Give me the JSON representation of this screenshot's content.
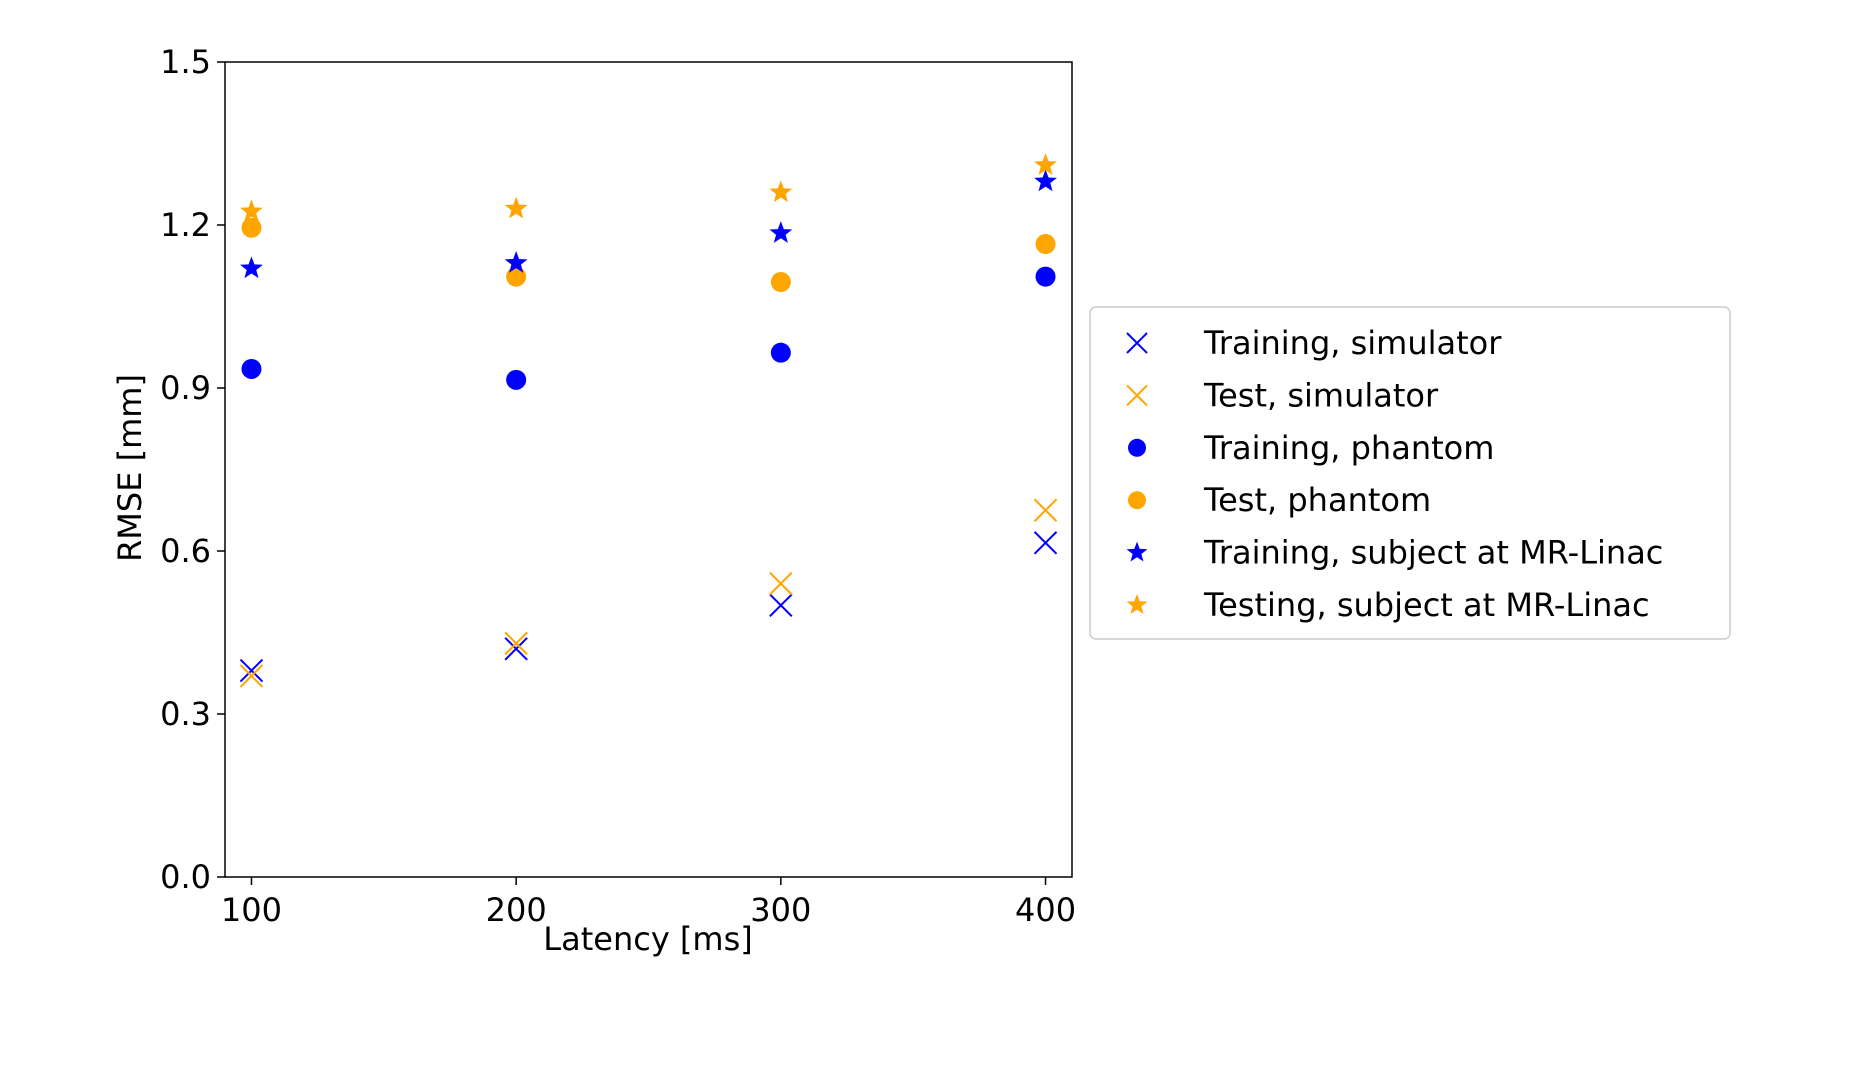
{
  "chart_data": {
    "type": "scatter",
    "title": "",
    "xlabel": "Latency [ms]",
    "ylabel": "RMSE [mm]",
    "xlim": [
      90,
      410
    ],
    "ylim": [
      0.0,
      1.5
    ],
    "xticks": [
      100,
      200,
      300,
      400
    ],
    "yticks": [
      0.0,
      0.3,
      0.6,
      0.9,
      1.2,
      1.5
    ],
    "xtick_labels": [
      "100",
      "200",
      "300",
      "400"
    ],
    "ytick_labels": [
      "0.0",
      "0.3",
      "0.6",
      "0.9",
      "1.2",
      "1.5"
    ],
    "grid": false,
    "legend_placement": "right, outside plot area",
    "colors": {
      "blue": "#0000ff",
      "orange": "#ffa500"
    },
    "series": [
      {
        "name": "Training, simulator",
        "marker": "x",
        "color": "#0000ff",
        "x": [
          100,
          200,
          300,
          400
        ],
        "y": [
          0.38,
          0.42,
          0.5,
          0.615
        ]
      },
      {
        "name": "Test, simulator",
        "marker": "x",
        "color": "#ffa500",
        "x": [
          100,
          200,
          300,
          400
        ],
        "y": [
          0.37,
          0.43,
          0.54,
          0.675
        ]
      },
      {
        "name": "Training, phantom",
        "marker": "circle",
        "color": "#0000ff",
        "x": [
          100,
          200,
          300,
          400
        ],
        "y": [
          0.935,
          0.915,
          0.965,
          1.105
        ]
      },
      {
        "name": "Test, phantom",
        "marker": "circle",
        "color": "#ffa500",
        "x": [
          100,
          200,
          300,
          400
        ],
        "y": [
          1.195,
          1.105,
          1.095,
          1.165
        ]
      },
      {
        "name": "Training, subject at MR-Linac",
        "marker": "star",
        "color": "#0000ff",
        "x": [
          100,
          200,
          300,
          400
        ],
        "y": [
          1.12,
          1.13,
          1.185,
          1.28
        ]
      },
      {
        "name": "Testing, subject at MR-Linac",
        "marker": "star",
        "color": "#ffa500",
        "x": [
          100,
          200,
          300,
          400
        ],
        "y": [
          1.225,
          1.23,
          1.26,
          1.31
        ]
      }
    ]
  }
}
